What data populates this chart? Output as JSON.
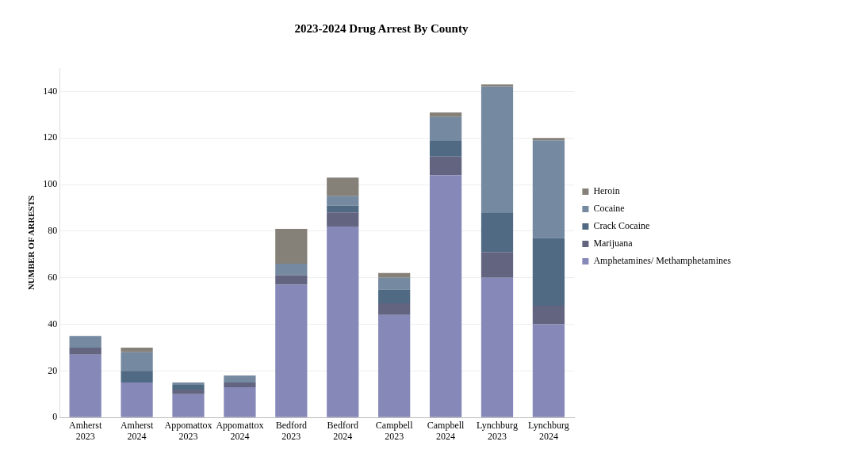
{
  "chart_data": {
    "type": "bar",
    "title": "2023-2024 Drug Arrest By County",
    "ylabel": "NUMBER OF ARRESTS",
    "categories": [
      "Amherst 2023",
      "Amherst 2024",
      "Appomattox 2023",
      "Appomattox 2024",
      "Bedford 2023",
      "Bedford 2024",
      "Campbell 2023",
      "Campbell 2024",
      "Lynchburg 2023",
      "Lynchburg 2024"
    ],
    "stacked": true,
    "ylim": [
      0,
      150
    ],
    "yticks": [
      0,
      20,
      40,
      60,
      80,
      100,
      120,
      140
    ],
    "grid": "y",
    "legend": "right",
    "series": [
      {
        "name": "Amphetamines/ Methamphetamines",
        "color": "#8688b8",
        "values": [
          27,
          15,
          10,
          13,
          57,
          82,
          44,
          104,
          60,
          40
        ]
      },
      {
        "name": "Marijuana",
        "color": "#626480",
        "values": [
          3,
          0,
          2,
          2,
          4,
          6,
          5,
          8,
          11,
          8
        ]
      },
      {
        "name": "Crack Cocaine",
        "color": "#506a84",
        "values": [
          0,
          5,
          2,
          0,
          0,
          3,
          6,
          7,
          17,
          29
        ]
      },
      {
        "name": "Cocaine",
        "color": "#7589a0",
        "values": [
          5,
          8,
          1,
          3,
          5,
          4,
          5,
          10,
          54,
          42
        ]
      },
      {
        "name": "Heroin",
        "color": "#858078",
        "values": [
          0,
          2,
          0,
          0,
          15,
          8,
          2,
          2,
          1,
          1
        ]
      }
    ]
  }
}
